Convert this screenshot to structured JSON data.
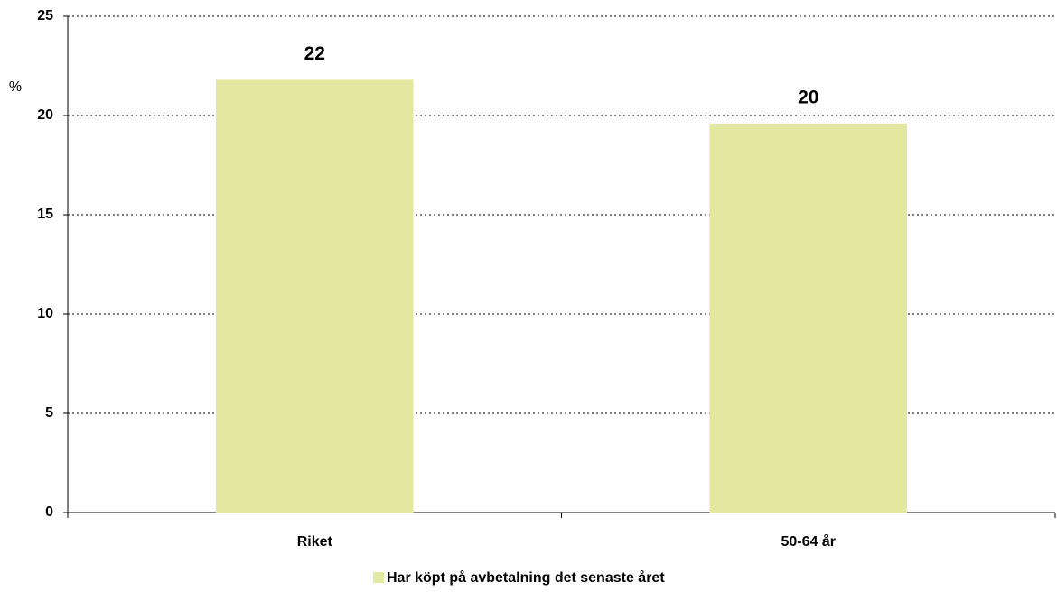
{
  "chart_data": {
    "type": "bar",
    "y_label": "%",
    "categories": [
      "Riket",
      "50-64 år"
    ],
    "series": [
      {
        "name": "Har köpt på avbetalning det senaste året",
        "color": "#e3e8a0",
        "values": [
          21.8,
          19.6
        ],
        "value_labels": [
          "22",
          "20"
        ]
      }
    ],
    "ylim": [
      0,
      25
    ],
    "yticks": [
      0,
      5,
      10,
      15,
      20,
      25
    ],
    "grid": true,
    "legend": "bottom"
  }
}
